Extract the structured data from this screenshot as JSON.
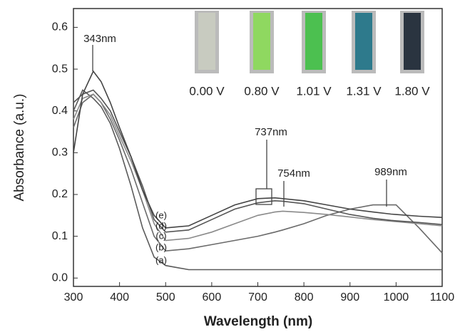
{
  "chart_data": {
    "type": "line",
    "x_label": "Wavelength (nm)",
    "y_label": "Absorbance (a.u.)",
    "x": [
      300,
      320,
      343,
      360,
      380,
      400,
      425,
      450,
      475,
      500,
      550,
      600,
      650,
      700,
      737,
      754,
      800,
      850,
      900,
      950,
      989,
      1000,
      1050,
      1100
    ],
    "series": [
      {
        "name": "(a)",
        "color": "#5a5a5a",
        "values": [
          0.4,
          0.45,
          0.43,
          0.41,
          0.37,
          0.31,
          0.22,
          0.12,
          0.05,
          0.03,
          0.02,
          0.02,
          0.02,
          0.02,
          0.02,
          0.02,
          0.02,
          0.02,
          0.02,
          0.02,
          0.02,
          0.02,
          0.02,
          0.02
        ]
      },
      {
        "name": "(b)",
        "color": "#6a6a6a",
        "values": [
          0.36,
          0.42,
          0.44,
          0.42,
          0.38,
          0.33,
          0.26,
          0.18,
          0.1,
          0.065,
          0.07,
          0.08,
          0.09,
          0.1,
          0.11,
          0.115,
          0.13,
          0.15,
          0.165,
          0.175,
          0.175,
          0.175,
          0.12,
          0.06
        ]
      },
      {
        "name": "(c)",
        "color": "#8a8a8a",
        "values": [
          0.38,
          0.43,
          0.44,
          0.42,
          0.39,
          0.34,
          0.28,
          0.21,
          0.13,
          0.09,
          0.095,
          0.11,
          0.13,
          0.15,
          0.158,
          0.16,
          0.157,
          0.152,
          0.146,
          0.14,
          0.136,
          0.135,
          0.13,
          0.125
        ]
      },
      {
        "name": "(d)",
        "color": "#555555",
        "values": [
          0.42,
          0.44,
          0.45,
          0.43,
          0.4,
          0.35,
          0.29,
          0.22,
          0.14,
          0.11,
          0.115,
          0.14,
          0.165,
          0.18,
          0.185,
          0.184,
          0.178,
          0.165,
          0.152,
          0.143,
          0.138,
          0.137,
          0.133,
          0.128
        ]
      },
      {
        "name": "(e)",
        "color": "#444444",
        "values": [
          0.3,
          0.44,
          0.495,
          0.47,
          0.42,
          0.36,
          0.29,
          0.21,
          0.15,
          0.12,
          0.125,
          0.15,
          0.175,
          0.19,
          0.192,
          0.19,
          0.185,
          0.175,
          0.165,
          0.158,
          0.153,
          0.152,
          0.148,
          0.145
        ]
      }
    ],
    "annotations": [
      "343nm",
      "737nm",
      "754nm",
      "989nm"
    ],
    "inset": [
      {
        "label": "0.00 V",
        "color": "#c8cbc0"
      },
      {
        "label": "0.80 V",
        "color": "#8fd860"
      },
      {
        "label": "1.01 V",
        "color": "#4cc050"
      },
      {
        "label": "1.31 V",
        "color": "#2e7a8c"
      },
      {
        "label": "1.80 V",
        "color": "#2a3440"
      }
    ],
    "xlim": [
      300,
      1100
    ],
    "ylim": [
      -0.02,
      0.645
    ],
    "xticks": [
      300,
      400,
      500,
      600,
      700,
      800,
      900,
      1000,
      1100
    ],
    "yticks": [
      {
        "value": 0,
        "label": "0.0"
      },
      0.1,
      0.2,
      0.3,
      0.4,
      0.5,
      0.6
    ]
  }
}
